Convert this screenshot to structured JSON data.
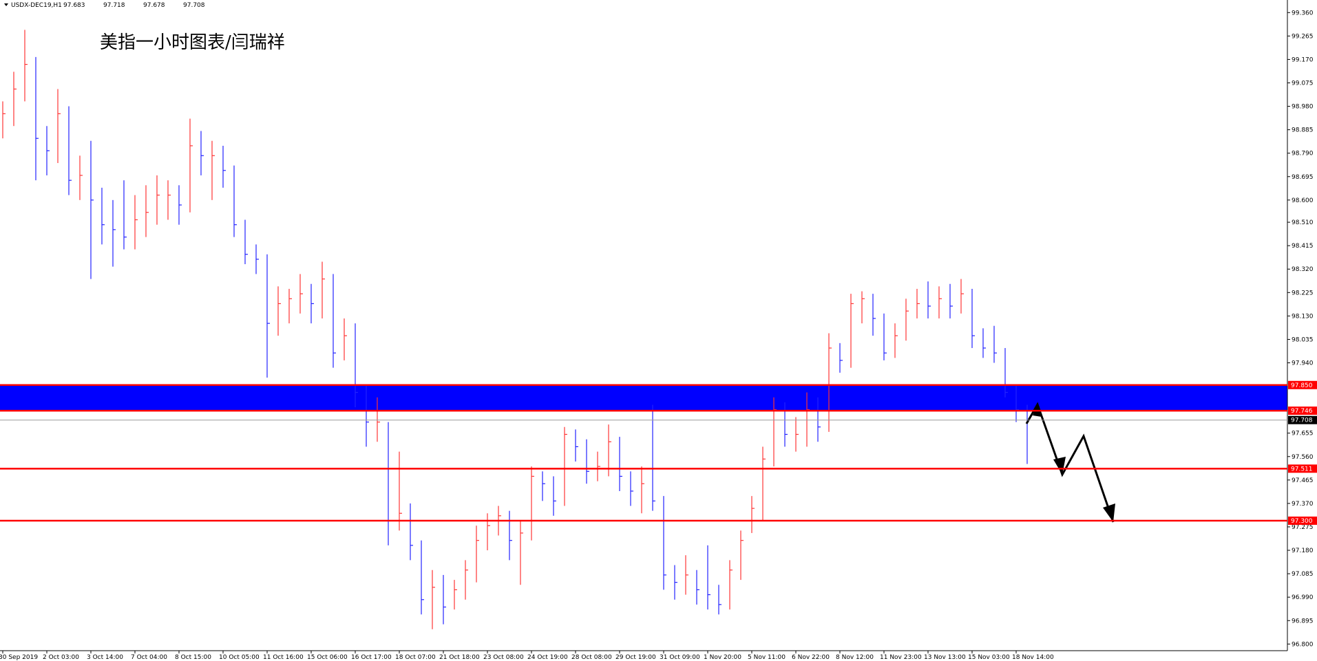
{
  "chart_data": {
    "type": "hlc-bar",
    "symbol": "USDX-DEC19,H1",
    "ohlc": [
      97.683,
      97.718,
      97.678,
      97.708
    ],
    "annotation": "美指一小时图表/闫瑞祥",
    "up_color": "#ff3333",
    "down_color": "#2222ff",
    "band_color": "#0000ff",
    "level_color": "#ff0000",
    "ylim": [
      96.773,
      99.411
    ],
    "yticks": [
      {
        "value": 99.36,
        "label": "99.360"
      },
      99.265,
      {
        "value": 99.17,
        "label": "99.170"
      },
      99.075,
      {
        "value": 98.98,
        "label": "98.980"
      },
      98.885,
      {
        "value": 98.79,
        "label": "98.790"
      },
      98.695,
      {
        "value": 98.6,
        "label": "98.600"
      },
      {
        "value": 98.51,
        "label": "98.510"
      },
      98.415,
      {
        "value": 98.32,
        "label": "98.320"
      },
      98.225,
      {
        "value": 98.13,
        "label": "98.130"
      },
      98.035,
      {
        "value": 97.94,
        "label": "97.940"
      },
      97.655,
      {
        "value": 97.56,
        "label": "97.560"
      },
      97.465,
      {
        "value": 97.37,
        "label": "97.370"
      },
      97.275,
      {
        "value": 97.18,
        "label": "97.180"
      },
      97.085,
      {
        "value": 96.99,
        "label": "96.990"
      },
      96.895,
      {
        "value": 96.8,
        "label": "96.800"
      }
    ],
    "band": [
      {
        "value": 97.85,
        "label": "97.850"
      },
      97.746
    ],
    "levels": [
      97.511,
      {
        "value": 97.3,
        "label": "97.300"
      }
    ],
    "current_price": 97.708,
    "categories": [
      "30 Sep 2019",
      null,
      null,
      null,
      "2 Oct 03:00",
      null,
      null,
      null,
      "3 Oct 14:00",
      null,
      null,
      null,
      "7 Oct 04:00",
      null,
      null,
      null,
      "8 Oct 15:00",
      null,
      null,
      null,
      "10 Oct 05:00",
      null,
      null,
      null,
      "11 Oct 16:00",
      null,
      null,
      null,
      "15 Oct 06:00",
      null,
      null,
      null,
      "16 Oct 17:00",
      null,
      null,
      null,
      "18 Oct 07:00",
      null,
      null,
      null,
      "21 Oct 18:00",
      null,
      null,
      null,
      "23 Oct 08:00",
      null,
      null,
      null,
      "24 Oct 19:00",
      null,
      null,
      null,
      "28 Oct 08:00",
      null,
      null,
      null,
      "29 Oct 19:00",
      null,
      null,
      null,
      "31 Oct 09:00",
      null,
      null,
      null,
      "1 Nov 20:00",
      null,
      null,
      null,
      "5 Nov 11:00",
      null,
      null,
      null,
      "6 Nov 22:00",
      null,
      null,
      null,
      "8 Nov 12:00",
      null,
      null,
      null,
      "11 Nov 23:00",
      null,
      null,
      null,
      "13 Nov 13:00",
      null,
      null,
      null,
      "15 Nov 03:00",
      null,
      null,
      null,
      "18 Nov 14:00",
      null
    ],
    "high": [
      99.0,
      99.12,
      99.29,
      99.18,
      98.9,
      99.05,
      98.98,
      98.78,
      98.84,
      98.65,
      98.6,
      98.68,
      98.62,
      98.66,
      98.7,
      98.68,
      98.66,
      98.93,
      98.88,
      98.84,
      98.82,
      98.74,
      98.52,
      98.42,
      98.38,
      98.25,
      98.24,
      98.3,
      98.26,
      98.35,
      98.3,
      98.12,
      98.1,
      97.85,
      97.8,
      97.7,
      97.58,
      97.37,
      97.22,
      97.1,
      97.08,
      97.06,
      97.14,
      97.28,
      97.33,
      97.36,
      97.34,
      97.3,
      97.52,
      97.5,
      97.48,
      97.68,
      97.67,
      97.63,
      97.58,
      97.69,
      97.64,
      97.5,
      97.52,
      97.77,
      97.4,
      97.12,
      97.16,
      97.1,
      97.2,
      97.04,
      97.14,
      97.26,
      97.4,
      97.6,
      97.8,
      97.78,
      97.72,
      97.82,
      97.8,
      98.06,
      98.02,
      98.22,
      98.23,
      98.22,
      98.14,
      98.1,
      98.2,
      98.24,
      98.27,
      98.25,
      98.26,
      98.28,
      98.24,
      98.08,
      98.09,
      98.0,
      97.85,
      97.77
    ],
    "low": [
      98.85,
      98.9,
      99.0,
      98.68,
      98.7,
      98.75,
      98.62,
      98.6,
      98.28,
      98.42,
      98.33,
      98.4,
      98.4,
      98.45,
      98.5,
      98.52,
      98.5,
      98.55,
      98.7,
      98.6,
      98.65,
      98.45,
      98.34,
      98.3,
      97.88,
      98.05,
      98.1,
      98.14,
      98.1,
      98.12,
      97.92,
      97.95,
      97.76,
      97.6,
      97.62,
      97.2,
      97.26,
      97.14,
      96.92,
      96.86,
      96.88,
      96.94,
      96.98,
      97.05,
      97.18,
      97.24,
      97.14,
      97.04,
      97.22,
      97.38,
      97.32,
      97.36,
      97.54,
      97.45,
      97.46,
      97.48,
      97.42,
      97.36,
      97.33,
      97.34,
      97.02,
      96.98,
      97.0,
      96.96,
      96.94,
      96.92,
      96.94,
      97.06,
      97.25,
      97.3,
      97.52,
      97.6,
      97.58,
      97.6,
      97.62,
      97.66,
      97.9,
      97.92,
      98.1,
      98.05,
      97.95,
      97.96,
      98.03,
      98.12,
      98.12,
      98.12,
      98.12,
      98.14,
      98.0,
      97.96,
      97.94,
      97.8,
      97.7,
      97.53
    ],
    "close": [
      98.95,
      99.05,
      99.15,
      98.85,
      98.8,
      98.95,
      98.68,
      98.7,
      98.6,
      98.5,
      98.48,
      98.45,
      98.52,
      98.55,
      98.62,
      98.62,
      98.58,
      98.82,
      98.78,
      98.78,
      98.72,
      98.5,
      98.38,
      98.36,
      98.1,
      98.18,
      98.2,
      98.22,
      98.18,
      98.28,
      97.98,
      98.05,
      97.82,
      97.7,
      97.7,
      97.3,
      97.33,
      97.2,
      96.98,
      97.03,
      96.95,
      97.02,
      97.1,
      97.22,
      97.28,
      97.32,
      97.22,
      97.25,
      97.48,
      97.45,
      97.38,
      97.65,
      97.6,
      97.5,
      97.52,
      97.62,
      97.48,
      97.42,
      97.45,
      97.38,
      97.08,
      97.05,
      97.08,
      97.02,
      97.0,
      96.96,
      97.1,
      97.22,
      97.35,
      97.55,
      97.75,
      97.65,
      97.65,
      97.75,
      97.68,
      98.0,
      97.95,
      98.18,
      98.2,
      98.12,
      97.98,
      98.05,
      98.15,
      98.18,
      98.17,
      98.2,
      98.17,
      98.22,
      98.05,
      98.0,
      97.98,
      97.82,
      97.75,
      97.708
    ]
  }
}
